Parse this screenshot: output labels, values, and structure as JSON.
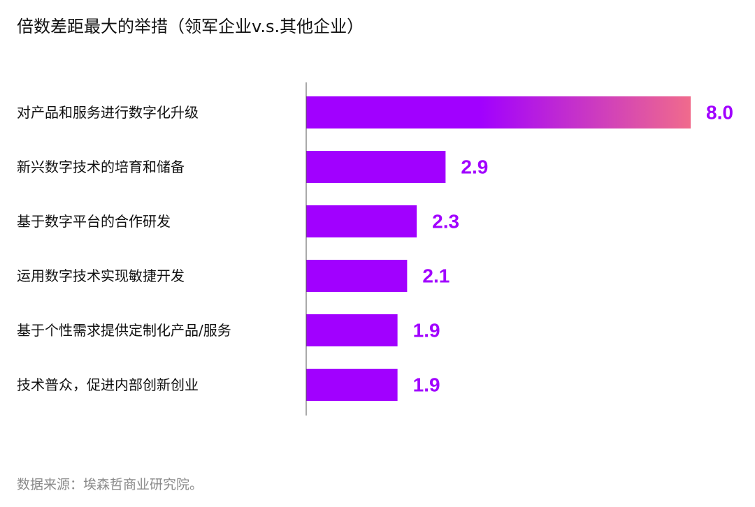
{
  "title": "倍数差距最大的举措（领军企业v.s.其他企业）",
  "source": "数据来源：埃森哲商业研究院。",
  "colors": {
    "bar": "#a100ff",
    "bar_gradient_end": "#f06b8c",
    "value_label": "#a100ff",
    "axis": "#555555",
    "category_label": "#111111"
  },
  "chart_data": {
    "type": "bar",
    "orientation": "horizontal",
    "categories": [
      "对产品和服务进行数字化升级",
      "新兴数字技术的培育和储备",
      "基于数字平台的合作研发",
      "运用数字技术实现敏捷开发",
      "基于个性需求提供定制化产品/服务",
      "技术普众，促进内部创新创业"
    ],
    "values": [
      8.0,
      2.9,
      2.3,
      2.1,
      1.9,
      1.9
    ],
    "value_labels": [
      "8.0",
      "2.9",
      "2.3",
      "2.1",
      "1.9",
      "1.9"
    ],
    "xlim": [
      0,
      8.0
    ],
    "grid": false,
    "legend": "none"
  }
}
